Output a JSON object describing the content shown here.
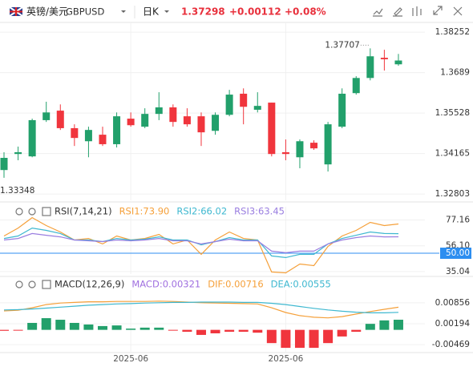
{
  "header": {
    "pair": "英镑/美元",
    "symbol": "GBPUSD",
    "period": "日K",
    "price": "1.37298",
    "change": "+0.00112",
    "change_pct": "+0.08%"
  },
  "chart_data": [
    {
      "type": "candlestick",
      "up_color": "#22a06b",
      "down_color": "#f0353d",
      "grid": true,
      "categories": [
        null,
        null,
        null,
        null,
        null,
        null,
        null,
        null,
        null,
        "2025-06",
        null,
        null,
        null,
        null,
        null,
        null,
        null,
        null,
        null,
        null,
        "2025-06",
        null,
        null,
        null,
        null,
        null,
        null,
        null,
        null
      ],
      "open": [
        1.3361,
        1.3415,
        1.3407,
        1.3529,
        1.3561,
        1.3502,
        1.3458,
        1.348,
        1.3448,
        1.3534,
        1.3507,
        1.355,
        1.3572,
        1.3542,
        1.3542,
        1.3493,
        1.3547,
        1.3618,
        1.3564,
        1.3588,
        1.3421,
        1.3404,
        1.3453,
        1.338,
        1.3507,
        1.362,
        1.3671,
        1.3739,
        1.3717
      ],
      "high": [
        1.3421,
        1.344,
        1.3534,
        1.3591,
        1.3582,
        1.3515,
        1.3507,
        1.3507,
        1.3555,
        1.3555,
        1.3569,
        1.3623,
        1.3582,
        1.3569,
        1.3555,
        1.3555,
        1.3631,
        1.3636,
        1.3623,
        1.3588,
        1.3464,
        1.3464,
        1.3461,
        1.3523,
        1.3636,
        1.3677,
        1.37707,
        1.3766,
        1.3752
      ],
      "low": [
        1.33348,
        1.3394,
        1.3404,
        1.3523,
        1.3496,
        1.3442,
        1.3404,
        1.3442,
        1.3437,
        1.3507,
        1.3502,
        1.3529,
        1.3507,
        1.3507,
        1.3442,
        1.348,
        1.3542,
        1.3515,
        1.3555,
        1.3407,
        1.3394,
        1.3367,
        1.3429,
        1.3356,
        1.3502,
        1.3615,
        1.3663,
        1.3696,
        1.3712
      ],
      "close": [
        1.3402,
        1.3421,
        1.3529,
        1.3555,
        1.3502,
        1.3469,
        1.3496,
        1.3448,
        1.3542,
        1.3512,
        1.355,
        1.3572,
        1.3523,
        1.3515,
        1.3488,
        1.3547,
        1.3615,
        1.3574,
        1.3577,
        1.3415,
        1.3415,
        1.3458,
        1.3434,
        1.3515,
        1.3618,
        1.3671,
        1.3744,
        1.3734,
        1.37298
      ],
      "ylim": [
        1.3259,
        1.3858
      ],
      "yticks": [
        1.38252,
        1.3689,
        1.35528,
        1.34165,
        1.32803
      ]
    },
    {
      "type": "line",
      "title": "RSI(7,14,21)",
      "grid": true,
      "series": [
        {
          "name": "RSI1:73.90",
          "color": "#f5a03a",
          "values": [
            64.1,
            70.6,
            79.1,
            72.6,
            67.4,
            60.8,
            62.1,
            57.6,
            64.1,
            60.8,
            62.1,
            65.4,
            57.6,
            60.8,
            49.1,
            60.8,
            67.4,
            62.1,
            60.8,
            34.7,
            34.0,
            41.2,
            39.9,
            55.6,
            64.1,
            68.7,
            75.2,
            72.6,
            73.9
          ]
        },
        {
          "name": "RSI2:66.02",
          "color": "#3fb8d0",
          "values": [
            62.1,
            64.1,
            70.6,
            68.7,
            66.1,
            60.8,
            60.8,
            59.5,
            62.1,
            60.8,
            61.5,
            63.4,
            60.8,
            60.8,
            56.9,
            59.5,
            62.8,
            60.8,
            60.8,
            47.8,
            46.5,
            49.1,
            49.1,
            57.6,
            62.1,
            64.7,
            67.4,
            66.1,
            66.02
          ]
        },
        {
          "name": "RSI3:63.45",
          "color": "#9a7ee0",
          "values": [
            60.8,
            62.1,
            66.1,
            64.7,
            63.4,
            60.8,
            60.2,
            59.5,
            60.8,
            60.2,
            60.8,
            62.1,
            60.2,
            60.2,
            57.6,
            59.5,
            61.5,
            60.2,
            60.2,
            51.7,
            50.4,
            51.7,
            51.7,
            57.6,
            60.8,
            62.8,
            64.1,
            63.4,
            63.45
          ]
        }
      ],
      "ylim": [
        33,
        88
      ],
      "yticks": [
        77.16,
        {
          "value": 56.1,
          "label": "56.10"
        },
        {
          "value": 50,
          "label": "50.00",
          "highlight": "#2d8ef0"
        },
        35.04
      ]
    },
    {
      "type": "combo",
      "title": "MACD(12,26,9)",
      "grid": true,
      "series": [
        {
          "name": "MACD:0.00321",
          "type": "bar",
          "color": "#a070e0",
          "up_color": "#22a06b",
          "down_color": "#f0353d",
          "values": [
            -0.0003,
            -0.0002,
            0.0022,
            0.0037,
            0.0032,
            0.0022,
            0.0017,
            0.0012,
            0.0014,
            0.0004,
            0.0007,
            0.0007,
            -0.0001,
            -0.0006,
            -0.0016,
            -0.0011,
            -0.0006,
            -0.0006,
            -0.0009,
            -0.0042,
            -0.0057,
            -0.0057,
            -0.0057,
            -0.0042,
            -0.0021,
            -0.0006,
            0.0019,
            0.003,
            0.00321
          ]
        },
        {
          "name": "DIF:0.00716",
          "type": "line",
          "color": "#f5a03a",
          "values": [
            0.006,
            0.0062,
            0.007,
            0.008,
            0.0085,
            0.0087,
            0.0089,
            0.0089,
            0.009,
            0.009,
            0.009,
            0.0091,
            0.009,
            0.0088,
            0.0086,
            0.0085,
            0.0084,
            0.0083,
            0.0082,
            0.007,
            0.0055,
            0.0045,
            0.004,
            0.0038,
            0.0042,
            0.005,
            0.0058,
            0.0065,
            0.00716
          ]
        },
        {
          "name": "DEA:0.00555",
          "type": "line",
          "color": "#3fb8d0",
          "values": [
            0.0063,
            0.0064,
            0.0066,
            0.0069,
            0.0072,
            0.0075,
            0.0078,
            0.008,
            0.0082,
            0.0083,
            0.0085,
            0.0086,
            0.0087,
            0.0087,
            0.0088,
            0.0088,
            0.0088,
            0.0087,
            0.0087,
            0.0084,
            0.008,
            0.0074,
            0.0068,
            0.0063,
            0.0059,
            0.0056,
            0.0054,
            0.0054,
            0.00555
          ]
        }
      ],
      "ylim": [
        -0.0072,
        0.0126
      ],
      "yticks": [
        0.00856,
        0.00194,
        -0.00469
      ]
    }
  ]
}
